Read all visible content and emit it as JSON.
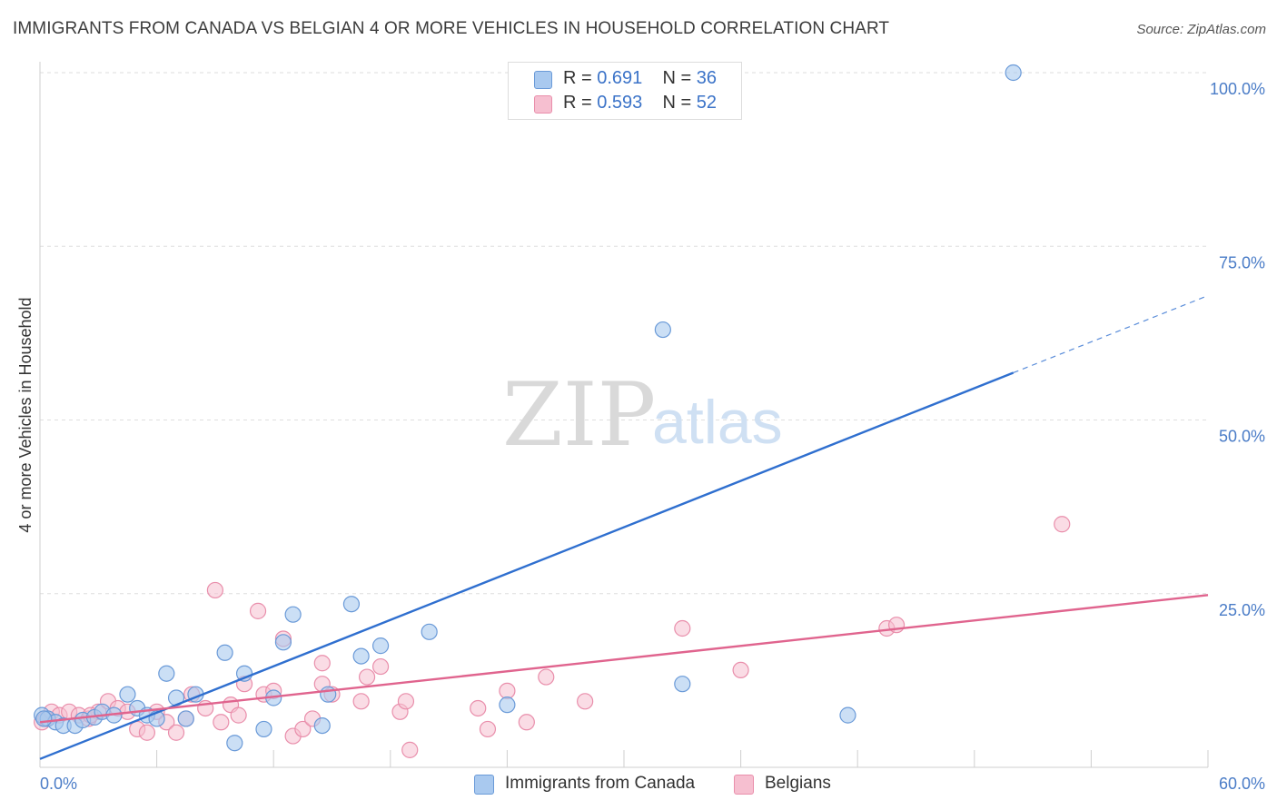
{
  "title": "IMMIGRANTS FROM CANADA VS BELGIAN 4 OR MORE VEHICLES IN HOUSEHOLD CORRELATION CHART",
  "source": "Source: ZipAtlas.com",
  "watermark": {
    "zip": "ZIP",
    "atlas": "atlas"
  },
  "colors": {
    "blue_fill": "#a9c9ef",
    "blue_stroke": "#6a9ad8",
    "blue_line": "#2f6fcf",
    "pink_fill": "#f6bfd0",
    "pink_stroke": "#e98eab",
    "pink_line": "#e0648e",
    "tick_text": "#4a7cc7",
    "grid": "#dedede"
  },
  "stats": {
    "rows": [
      {
        "r_label": "R = ",
        "r_value": "0.691",
        "n_label": "N = ",
        "n_value": "36"
      },
      {
        "r_label": "R = ",
        "r_value": "0.593",
        "n_label": "N = ",
        "n_value": "52"
      }
    ]
  },
  "legend": {
    "series1": "Immigrants from Canada",
    "series2": "Belgians"
  },
  "chart_data": {
    "type": "scatter",
    "title": "IMMIGRANTS FROM CANADA VS BELGIAN 4 OR MORE VEHICLES IN HOUSEHOLD CORRELATION CHART",
    "xlabel": "",
    "ylabel": "4 or more Vehicles in Household",
    "xlim": [
      0,
      60
    ],
    "ylim": [
      0,
      100
    ],
    "x_tick_labels": [
      "0.0%",
      "60.0%"
    ],
    "y_ticks": [
      25,
      50,
      75,
      100
    ],
    "y_tick_labels": [
      "25.0%",
      "50.0%",
      "75.0%",
      "100.0%"
    ],
    "grid": true,
    "legend_position": "bottom-center",
    "series": [
      {
        "name": "Immigrants from Canada",
        "R": 0.691,
        "N": 36,
        "trend": {
          "x_start": 0,
          "y_start": 1.2,
          "x_end": 50,
          "y_end": 56.8,
          "dashed_x_end": 60,
          "dashed_y_end": 67.9
        },
        "points": [
          [
            0.1,
            7.5
          ],
          [
            0.4,
            7.0
          ],
          [
            0.8,
            6.5
          ],
          [
            1.2,
            6.0
          ],
          [
            1.8,
            6.0
          ],
          [
            2.2,
            6.8
          ],
          [
            2.8,
            7.2
          ],
          [
            3.2,
            8.0
          ],
          [
            3.8,
            7.5
          ],
          [
            4.5,
            10.5
          ],
          [
            5.0,
            8.5
          ],
          [
            5.5,
            7.5
          ],
          [
            6.0,
            7.0
          ],
          [
            6.5,
            13.5
          ],
          [
            7.0,
            10.0
          ],
          [
            7.5,
            7.0
          ],
          [
            8.0,
            10.5
          ],
          [
            9.5,
            16.5
          ],
          [
            10.0,
            3.5
          ],
          [
            10.5,
            13.5
          ],
          [
            11.5,
            5.5
          ],
          [
            12.0,
            10.0
          ],
          [
            12.5,
            18.0
          ],
          [
            13.0,
            22.0
          ],
          [
            14.5,
            6.0
          ],
          [
            14.8,
            10.5
          ],
          [
            16.0,
            23.5
          ],
          [
            16.5,
            16.0
          ],
          [
            17.5,
            17.5
          ],
          [
            20.0,
            19.5
          ],
          [
            24.0,
            9.0
          ],
          [
            32.0,
            63.0
          ],
          [
            33.0,
            12.0
          ],
          [
            41.5,
            7.5
          ],
          [
            50.0,
            100.0
          ],
          [
            0.2,
            7.0
          ]
        ]
      },
      {
        "name": "Belgians",
        "R": 0.593,
        "N": 52,
        "trend": {
          "x_start": 0,
          "y_start": 6.5,
          "x_end": 60,
          "y_end": 24.8
        },
        "points": [
          [
            0.1,
            6.5
          ],
          [
            0.3,
            7.0
          ],
          [
            0.6,
            8.0
          ],
          [
            1.0,
            7.5
          ],
          [
            1.5,
            8.0
          ],
          [
            2.0,
            7.5
          ],
          [
            2.5,
            7.0
          ],
          [
            3.0,
            8.0
          ],
          [
            3.5,
            9.5
          ],
          [
            4.0,
            8.5
          ],
          [
            4.5,
            8.0
          ],
          [
            5.0,
            5.5
          ],
          [
            5.5,
            5.0
          ],
          [
            6.0,
            8.0
          ],
          [
            6.5,
            6.5
          ],
          [
            7.0,
            5.0
          ],
          [
            7.5,
            7.0
          ],
          [
            7.8,
            10.5
          ],
          [
            8.5,
            8.5
          ],
          [
            9.0,
            25.5
          ],
          [
            9.3,
            6.5
          ],
          [
            9.8,
            9.0
          ],
          [
            10.2,
            7.5
          ],
          [
            10.5,
            12.0
          ],
          [
            11.2,
            22.5
          ],
          [
            11.5,
            10.5
          ],
          [
            12.0,
            11.0
          ],
          [
            12.5,
            18.5
          ],
          [
            13.0,
            4.5
          ],
          [
            13.5,
            5.5
          ],
          [
            14.0,
            7.0
          ],
          [
            14.5,
            15.0
          ],
          [
            14.5,
            12.0
          ],
          [
            15.0,
            10.5
          ],
          [
            16.5,
            9.5
          ],
          [
            16.8,
            13.0
          ],
          [
            17.5,
            14.5
          ],
          [
            18.5,
            8.0
          ],
          [
            18.8,
            9.5
          ],
          [
            19.0,
            2.5
          ],
          [
            22.5,
            8.5
          ],
          [
            23.0,
            5.5
          ],
          [
            24.0,
            11.0
          ],
          [
            25.0,
            6.5
          ],
          [
            26.0,
            13.0
          ],
          [
            28.0,
            9.5
          ],
          [
            33.0,
            20.0
          ],
          [
            36.0,
            14.0
          ],
          [
            43.5,
            20.0
          ],
          [
            44.0,
            20.5
          ],
          [
            52.5,
            35.0
          ],
          [
            2.6,
            7.5
          ]
        ]
      }
    ]
  }
}
